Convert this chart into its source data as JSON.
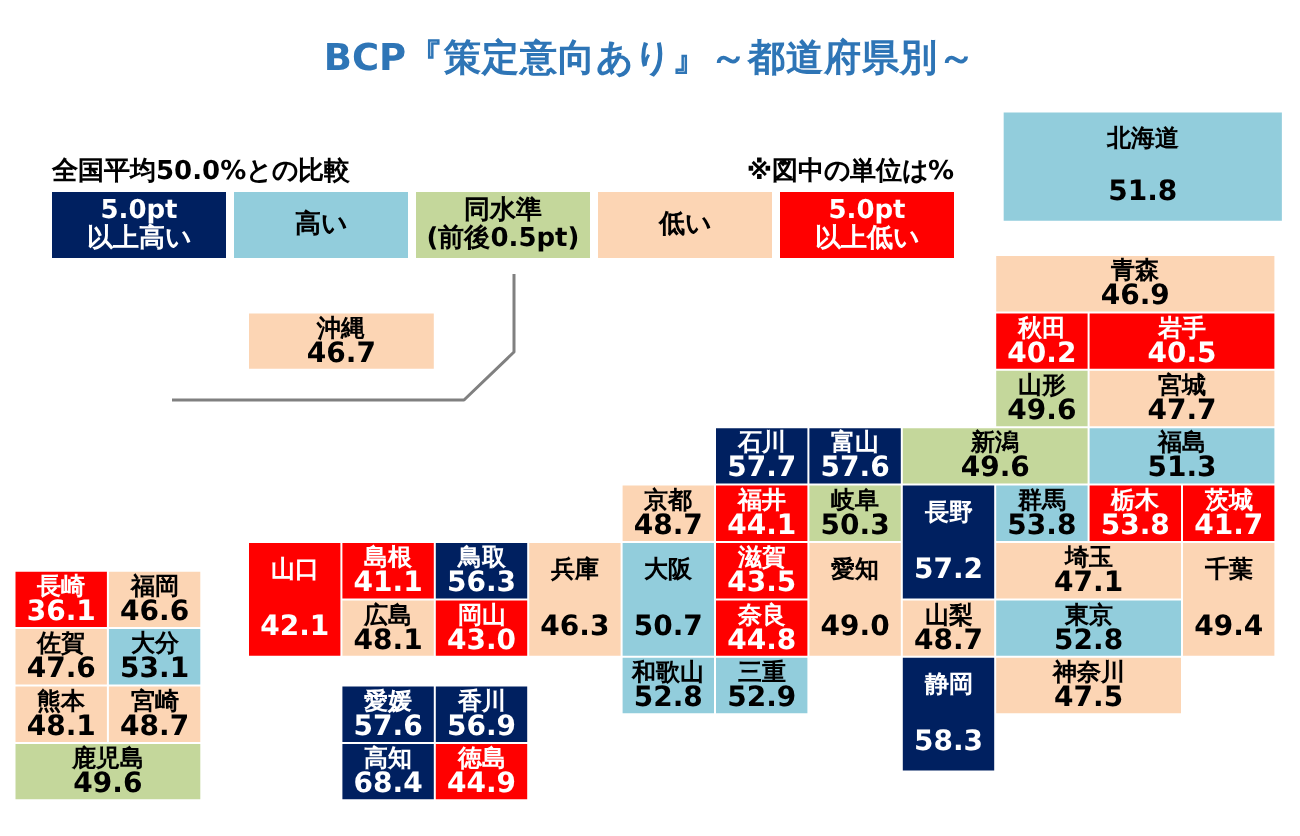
{
  "chart_data": {
    "type": "other",
    "title": "BCP『策定意向あり』～都道府県別～",
    "legend_title": "全国平均50.0%との比較",
    "annotations": [
      "※図中の単位は%"
    ],
    "legend": "top left",
    "categories": [
      "北海道",
      "青森",
      "岩手",
      "宮城",
      "秋田",
      "山形",
      "福島",
      "茨城",
      "栃木",
      "群馬",
      "埼玉",
      "千葉",
      "東京",
      "神奈川",
      "新潟",
      "富山",
      "石川",
      "福井",
      "山梨",
      "長野",
      "岐阜",
      "静岡",
      "愛知",
      "三重",
      "滋賀",
      "京都",
      "大阪",
      "兵庫",
      "奈良",
      "和歌山",
      "鳥取",
      "島根",
      "岡山",
      "広島",
      "山口",
      "徳島",
      "香川",
      "愛媛",
      "高知",
      "福岡",
      "佐賀",
      "長崎",
      "熊本",
      "大分",
      "宮崎",
      "鹿児島",
      "沖縄"
    ],
    "series": [
      {
        "name": "5.0pt以上高い",
        "color": "#002060",
        "values": [
          null,
          null,
          null,
          null,
          null,
          null,
          null,
          null,
          null,
          null,
          null,
          null,
          null,
          null,
          null,
          57.6,
          57.7,
          null,
          null,
          57.2,
          null,
          58.3,
          null,
          null,
          null,
          null,
          null,
          null,
          null,
          null,
          56.3,
          null,
          null,
          null,
          null,
          null,
          56.9,
          57.6,
          68.4,
          null,
          null,
          null,
          null,
          null,
          null,
          null,
          null
        ],
        "value_labels": [
          null,
          null,
          null,
          null,
          null,
          null,
          null,
          null,
          null,
          null,
          null,
          null,
          null,
          null,
          null,
          "57.6",
          "57.7",
          null,
          null,
          "57.2",
          null,
          "58.3",
          null,
          null,
          null,
          null,
          null,
          null,
          null,
          null,
          "56.3",
          null,
          null,
          null,
          null,
          null,
          "56.9",
          "57.6",
          "68.4",
          null,
          null,
          null,
          null,
          null,
          null,
          null,
          null
        ]
      },
      {
        "name": "高い",
        "color": "#92cddc",
        "values": [
          51.8,
          null,
          null,
          null,
          null,
          null,
          51.3,
          null,
          null,
          53.8,
          null,
          null,
          52.8,
          null,
          null,
          null,
          null,
          null,
          null,
          null,
          null,
          null,
          null,
          52.9,
          null,
          null,
          50.7,
          null,
          null,
          52.8,
          null,
          null,
          null,
          null,
          null,
          null,
          null,
          null,
          null,
          null,
          null,
          null,
          null,
          53.1,
          null,
          null,
          null
        ],
        "value_labels": [
          "51.8",
          null,
          null,
          null,
          null,
          null,
          "51.3",
          null,
          null,
          "53.8",
          null,
          null,
          "52.8",
          null,
          null,
          null,
          null,
          null,
          null,
          null,
          null,
          null,
          null,
          "52.9",
          null,
          null,
          "50.7",
          null,
          null,
          "52.8",
          null,
          null,
          null,
          null,
          null,
          null,
          null,
          null,
          null,
          null,
          null,
          null,
          null,
          "53.1",
          null,
          null,
          null
        ]
      },
      {
        "name": "同水準(前後0.5pt)",
        "color": "#c4d79b",
        "values": [
          null,
          null,
          null,
          null,
          null,
          49.6,
          null,
          null,
          null,
          null,
          null,
          null,
          null,
          null,
          49.6,
          null,
          null,
          null,
          null,
          null,
          50.3,
          null,
          null,
          null,
          null,
          null,
          null,
          null,
          null,
          null,
          null,
          null,
          null,
          null,
          null,
          null,
          null,
          null,
          null,
          null,
          null,
          null,
          null,
          null,
          null,
          49.6,
          null
        ],
        "value_labels": [
          null,
          null,
          null,
          null,
          null,
          "49.6",
          null,
          null,
          null,
          null,
          null,
          null,
          null,
          null,
          "49.6",
          null,
          null,
          null,
          null,
          null,
          "50.3",
          null,
          null,
          null,
          null,
          null,
          null,
          null,
          null,
          null,
          null,
          null,
          null,
          null,
          null,
          null,
          null,
          null,
          null,
          null,
          null,
          null,
          null,
          null,
          null,
          "49.6",
          null
        ]
      },
      {
        "name": "低い",
        "color": "#fcd5b4",
        "values": [
          null,
          46.9,
          null,
          47.7,
          null,
          null,
          null,
          null,
          null,
          null,
          47.1,
          49.4,
          null,
          47.5,
          null,
          null,
          null,
          null,
          48.7,
          null,
          null,
          null,
          49.0,
          null,
          null,
          48.7,
          null,
          46.3,
          null,
          null,
          null,
          null,
          null,
          48.1,
          null,
          null,
          null,
          null,
          null,
          46.6,
          47.6,
          null,
          48.1,
          null,
          48.7,
          null,
          46.7
        ],
        "value_labels": [
          null,
          "46.9",
          null,
          "47.7",
          null,
          null,
          null,
          null,
          null,
          null,
          "47.1",
          "49.4",
          null,
          "47.5",
          null,
          null,
          null,
          null,
          "48.7",
          null,
          null,
          null,
          "49.0",
          null,
          null,
          "48.7",
          null,
          "46.3",
          null,
          null,
          null,
          null,
          null,
          "48.1",
          null,
          null,
          null,
          null,
          null,
          "46.6",
          "47.6",
          null,
          "48.1",
          null,
          "48.7",
          null,
          "46.7"
        ]
      },
      {
        "name": "5.0pt以上低い",
        "color": "#ff0000",
        "values": [
          null,
          null,
          40.5,
          null,
          40.2,
          null,
          null,
          41.7,
          53.8,
          null,
          null,
          null,
          null,
          null,
          null,
          null,
          null,
          44.1,
          null,
          null,
          null,
          null,
          null,
          null,
          43.5,
          null,
          null,
          null,
          44.8,
          null,
          null,
          41.1,
          43.0,
          null,
          42.1,
          44.9,
          null,
          null,
          null,
          null,
          null,
          36.1,
          null,
          null,
          null,
          null,
          null
        ],
        "value_labels": [
          null,
          null,
          "40.5",
          null,
          "40.2",
          null,
          null,
          "41.7",
          "53.8",
          null,
          null,
          null,
          null,
          null,
          null,
          null,
          null,
          "44.1",
          null,
          null,
          null,
          null,
          null,
          null,
          "43.5",
          null,
          null,
          null,
          "44.8",
          null,
          null,
          "41.1",
          "43.0",
          null,
          "42.1",
          "44.9",
          null,
          null,
          null,
          null,
          null,
          "36.1",
          null,
          null,
          null,
          null,
          null
        ]
      }
    ]
  }
}
